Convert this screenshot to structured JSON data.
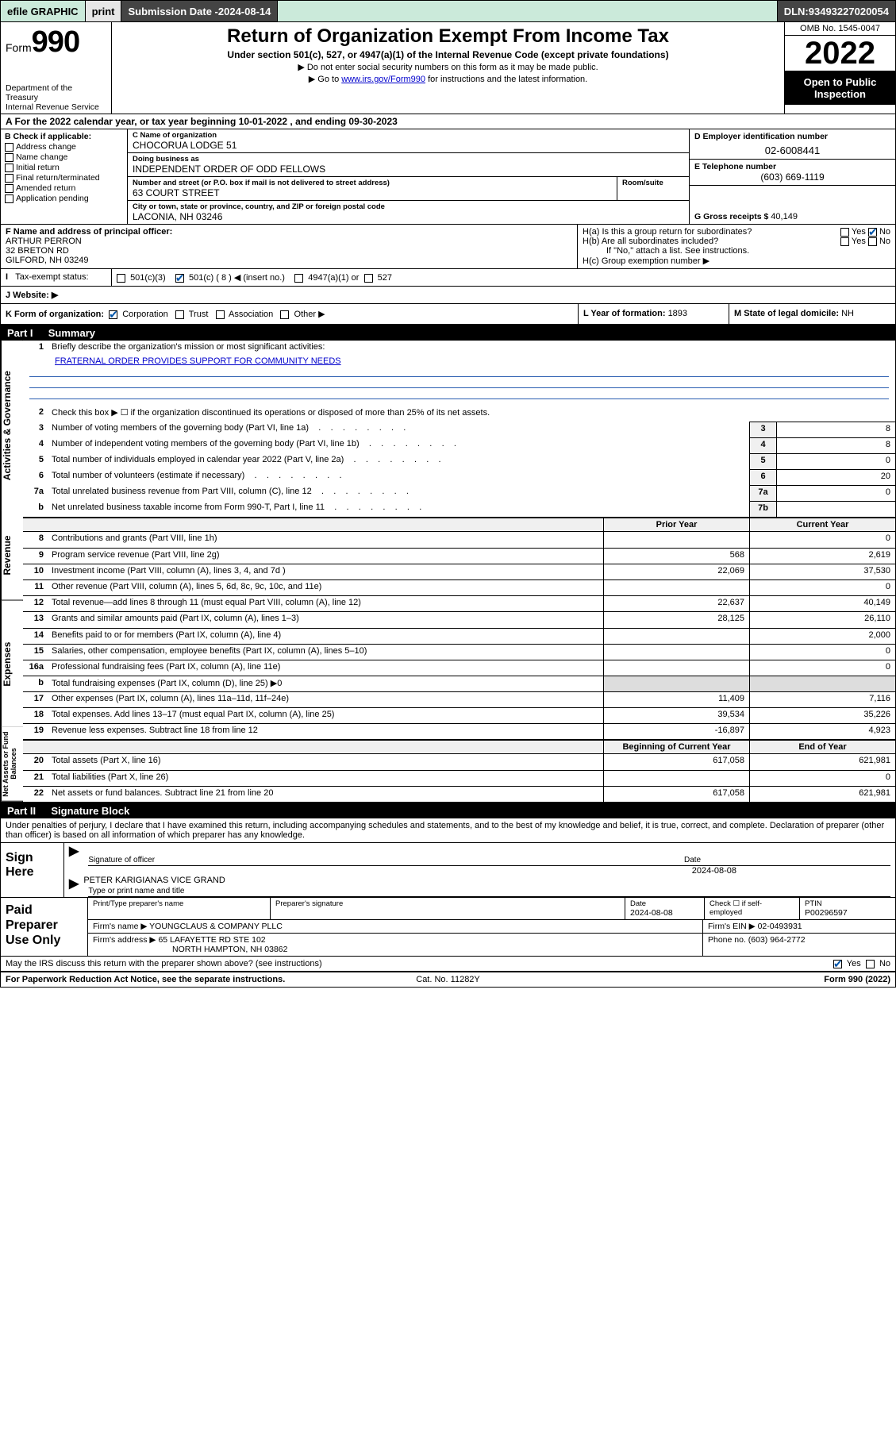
{
  "topbar": {
    "efile": "efile GRAPHIC",
    "print": "print",
    "sub_label": "Submission Date - ",
    "sub_date": "2024-08-14",
    "dln_label": "DLN: ",
    "dln": "93493227020054"
  },
  "header": {
    "form_word": "Form",
    "form_num": "990",
    "dept": "Department of the Treasury",
    "irs": "Internal Revenue Service",
    "title": "Return of Organization Exempt From Income Tax",
    "sub": "Under section 501(c), 527, or 4947(a)(1) of the Internal Revenue Code (except private foundations)",
    "note1": "▶ Do not enter social security numbers on this form as it may be made public.",
    "note2_pre": "▶ Go to ",
    "note2_link": "www.irs.gov/Form990",
    "note2_post": " for instructions and the latest information.",
    "omb": "OMB No. 1545-0047",
    "year": "2022",
    "inspect": "Open to Public Inspection"
  },
  "row_a": {
    "pre": "A For the 2022 calendar year, or tax year beginning ",
    "begin": "10-01-2022",
    "mid": "   , and ending ",
    "end": "09-30-2023"
  },
  "b": {
    "label": "B Check if applicable:",
    "opts": [
      "Address change",
      "Name change",
      "Initial return",
      "Final return/terminated",
      "Amended return",
      "Application pending"
    ]
  },
  "c": {
    "name_lbl": "C Name of organization",
    "name": "CHOCORUA LODGE 51",
    "dba_lbl": "Doing business as",
    "dba": "INDEPENDENT ORDER OF ODD FELLOWS",
    "street_lbl": "Number and street (or P.O. box if mail is not delivered to street address)",
    "room_lbl": "Room/suite",
    "street": "63 COURT STREET",
    "city_lbl": "City or town, state or province, country, and ZIP or foreign postal code",
    "city": "LACONIA, NH  03246"
  },
  "d": {
    "lbl": "D Employer identification number",
    "val": "02-6008441"
  },
  "e": {
    "lbl": "E Telephone number",
    "val": "(603) 669-1119"
  },
  "g": {
    "lbl": "G Gross receipts $ ",
    "val": "40,149"
  },
  "f": {
    "lbl": "F  Name and address of principal officer:",
    "name": "ARTHUR PERRON",
    "addr1": "32 BRETON RD",
    "addr2": "GILFORD, NH  03249"
  },
  "h": {
    "a": "H(a)  Is this a group return for subordinates?",
    "b": "H(b)  Are all subordinates included?",
    "bnote": "If \"No,\" attach a list. See instructions.",
    "c": "H(c)  Group exemption number ▶",
    "yes": "Yes",
    "no": "No"
  },
  "i_lbl": "Tax-exempt status:",
  "i_opts": {
    "a": "501(c)(3)",
    "b": "501(c) ( 8 ) ◀ (insert no.)",
    "c": "4947(a)(1) or",
    "d": "527"
  },
  "j_lbl": "J   Website: ▶",
  "k": {
    "lbl": "K Form of organization:",
    "opts": [
      "Corporation",
      "Trust",
      "Association",
      "Other ▶"
    ]
  },
  "l": {
    "lbl": "L Year of formation: ",
    "val": "1893"
  },
  "m": {
    "lbl": "M State of legal domicile: ",
    "val": "NH"
  },
  "part1": {
    "num": "Part I",
    "title": "Summary"
  },
  "mission_label": "Briefly describe the organization's mission or most significant activities:",
  "mission": "FRATERNAL ORDER PROVIDES SUPPORT FOR COMMUNITY NEEDS",
  "line2": "Check this box ▶ ☐  if the organization discontinued its operations or disposed of more than 25% of its net assets.",
  "gov_lines": [
    {
      "n": "3",
      "d": "Number of voting members of the governing body (Part VI, line 1a)",
      "box": "3",
      "v": "8"
    },
    {
      "n": "4",
      "d": "Number of independent voting members of the governing body (Part VI, line 1b)",
      "box": "4",
      "v": "8"
    },
    {
      "n": "5",
      "d": "Total number of individuals employed in calendar year 2022 (Part V, line 2a)",
      "box": "5",
      "v": "0"
    },
    {
      "n": "6",
      "d": "Total number of volunteers (estimate if necessary)",
      "box": "6",
      "v": "20"
    },
    {
      "n": "7a",
      "d": "Total unrelated business revenue from Part VIII, column (C), line 12",
      "box": "7a",
      "v": "0"
    },
    {
      "n": "b",
      "d": "Net unrelated business taxable income from Form 990-T, Part I, line 11",
      "box": "7b",
      "v": ""
    }
  ],
  "col_hdr": {
    "prior": "Prior Year",
    "current": "Current Year",
    "boy": "Beginning of Current Year",
    "eoy": "End of Year"
  },
  "rev_lines": [
    {
      "n": "8",
      "d": "Contributions and grants (Part VIII, line 1h)",
      "p": "",
      "c": "0"
    },
    {
      "n": "9",
      "d": "Program service revenue (Part VIII, line 2g)",
      "p": "568",
      "c": "2,619"
    },
    {
      "n": "10",
      "d": "Investment income (Part VIII, column (A), lines 3, 4, and 7d )",
      "p": "22,069",
      "c": "37,530"
    },
    {
      "n": "11",
      "d": "Other revenue (Part VIII, column (A), lines 5, 6d, 8c, 9c, 10c, and 11e)",
      "p": "",
      "c": "0"
    },
    {
      "n": "12",
      "d": "Total revenue—add lines 8 through 11 (must equal Part VIII, column (A), line 12)",
      "p": "22,637",
      "c": "40,149"
    }
  ],
  "exp_lines": [
    {
      "n": "13",
      "d": "Grants and similar amounts paid (Part IX, column (A), lines 1–3)",
      "p": "28,125",
      "c": "26,110"
    },
    {
      "n": "14",
      "d": "Benefits paid to or for members (Part IX, column (A), line 4)",
      "p": "",
      "c": "2,000"
    },
    {
      "n": "15",
      "d": "Salaries, other compensation, employee benefits (Part IX, column (A), lines 5–10)",
      "p": "",
      "c": "0"
    },
    {
      "n": "16a",
      "d": "Professional fundraising fees (Part IX, column (A), line 11e)",
      "p": "",
      "c": "0"
    },
    {
      "n": "b",
      "d": "Total fundraising expenses (Part IX, column (D), line 25) ▶0",
      "p": null,
      "c": null
    },
    {
      "n": "17",
      "d": "Other expenses (Part IX, column (A), lines 11a–11d, 11f–24e)",
      "p": "11,409",
      "c": "7,116"
    },
    {
      "n": "18",
      "d": "Total expenses. Add lines 13–17 (must equal Part IX, column (A), line 25)",
      "p": "39,534",
      "c": "35,226"
    },
    {
      "n": "19",
      "d": "Revenue less expenses. Subtract line 18 from line 12",
      "p": "-16,897",
      "c": "4,923"
    }
  ],
  "na_lines": [
    {
      "n": "20",
      "d": "Total assets (Part X, line 16)",
      "p": "617,058",
      "c": "621,981"
    },
    {
      "n": "21",
      "d": "Total liabilities (Part X, line 26)",
      "p": "",
      "c": "0"
    },
    {
      "n": "22",
      "d": "Net assets or fund balances. Subtract line 21 from line 20",
      "p": "617,058",
      "c": "621,981"
    }
  ],
  "vlabels": {
    "gov": "Activities & Governance",
    "rev": "Revenue",
    "exp": "Expenses",
    "na": "Net Assets or Fund Balances"
  },
  "part2": {
    "num": "Part II",
    "title": "Signature Block"
  },
  "decl": "Under penalties of perjury, I declare that I have examined this return, including accompanying schedules and statements, and to the best of my knowledge and belief, it is true, correct, and complete. Declaration of preparer (other than officer) is based on all information of which preparer has any knowledge.",
  "sign": {
    "here": "Sign Here",
    "sig_of_officer": "Signature of officer",
    "date_lbl": "Date",
    "date": "2024-08-08",
    "name": "PETER KARIGIANAS  VICE GRAND",
    "name_lbl": "Type or print name and title"
  },
  "prep": {
    "here": "Paid Preparer Use Only",
    "h_name": "Print/Type preparer's name",
    "h_sig": "Preparer's signature",
    "h_date": "Date",
    "date": "2024-08-08",
    "h_check": "Check ☐ if self-employed",
    "h_ptin": "PTIN",
    "ptin": "P00296597",
    "firm_name_lbl": "Firm's name      ▶",
    "firm_name": "YOUNGCLAUS & COMPANY PLLC",
    "firm_ein_lbl": "Firm's EIN ▶ ",
    "firm_ein": "02-0493931",
    "firm_addr_lbl": "Firm's address ▶",
    "firm_addr1": "65 LAFAYETTE RD STE 102",
    "firm_addr2": "NORTH HAMPTON, NH  03862",
    "phone_lbl": "Phone no. ",
    "phone": "(603) 964-2772"
  },
  "discuss": {
    "q": "May the IRS discuss this return with the preparer shown above? (see instructions)",
    "yes": "Yes",
    "no": "No"
  },
  "footer": {
    "l": "For Paperwork Reduction Act Notice, see the separate instructions.",
    "c": "Cat. No. 11282Y",
    "r": "Form 990 (2022)"
  }
}
